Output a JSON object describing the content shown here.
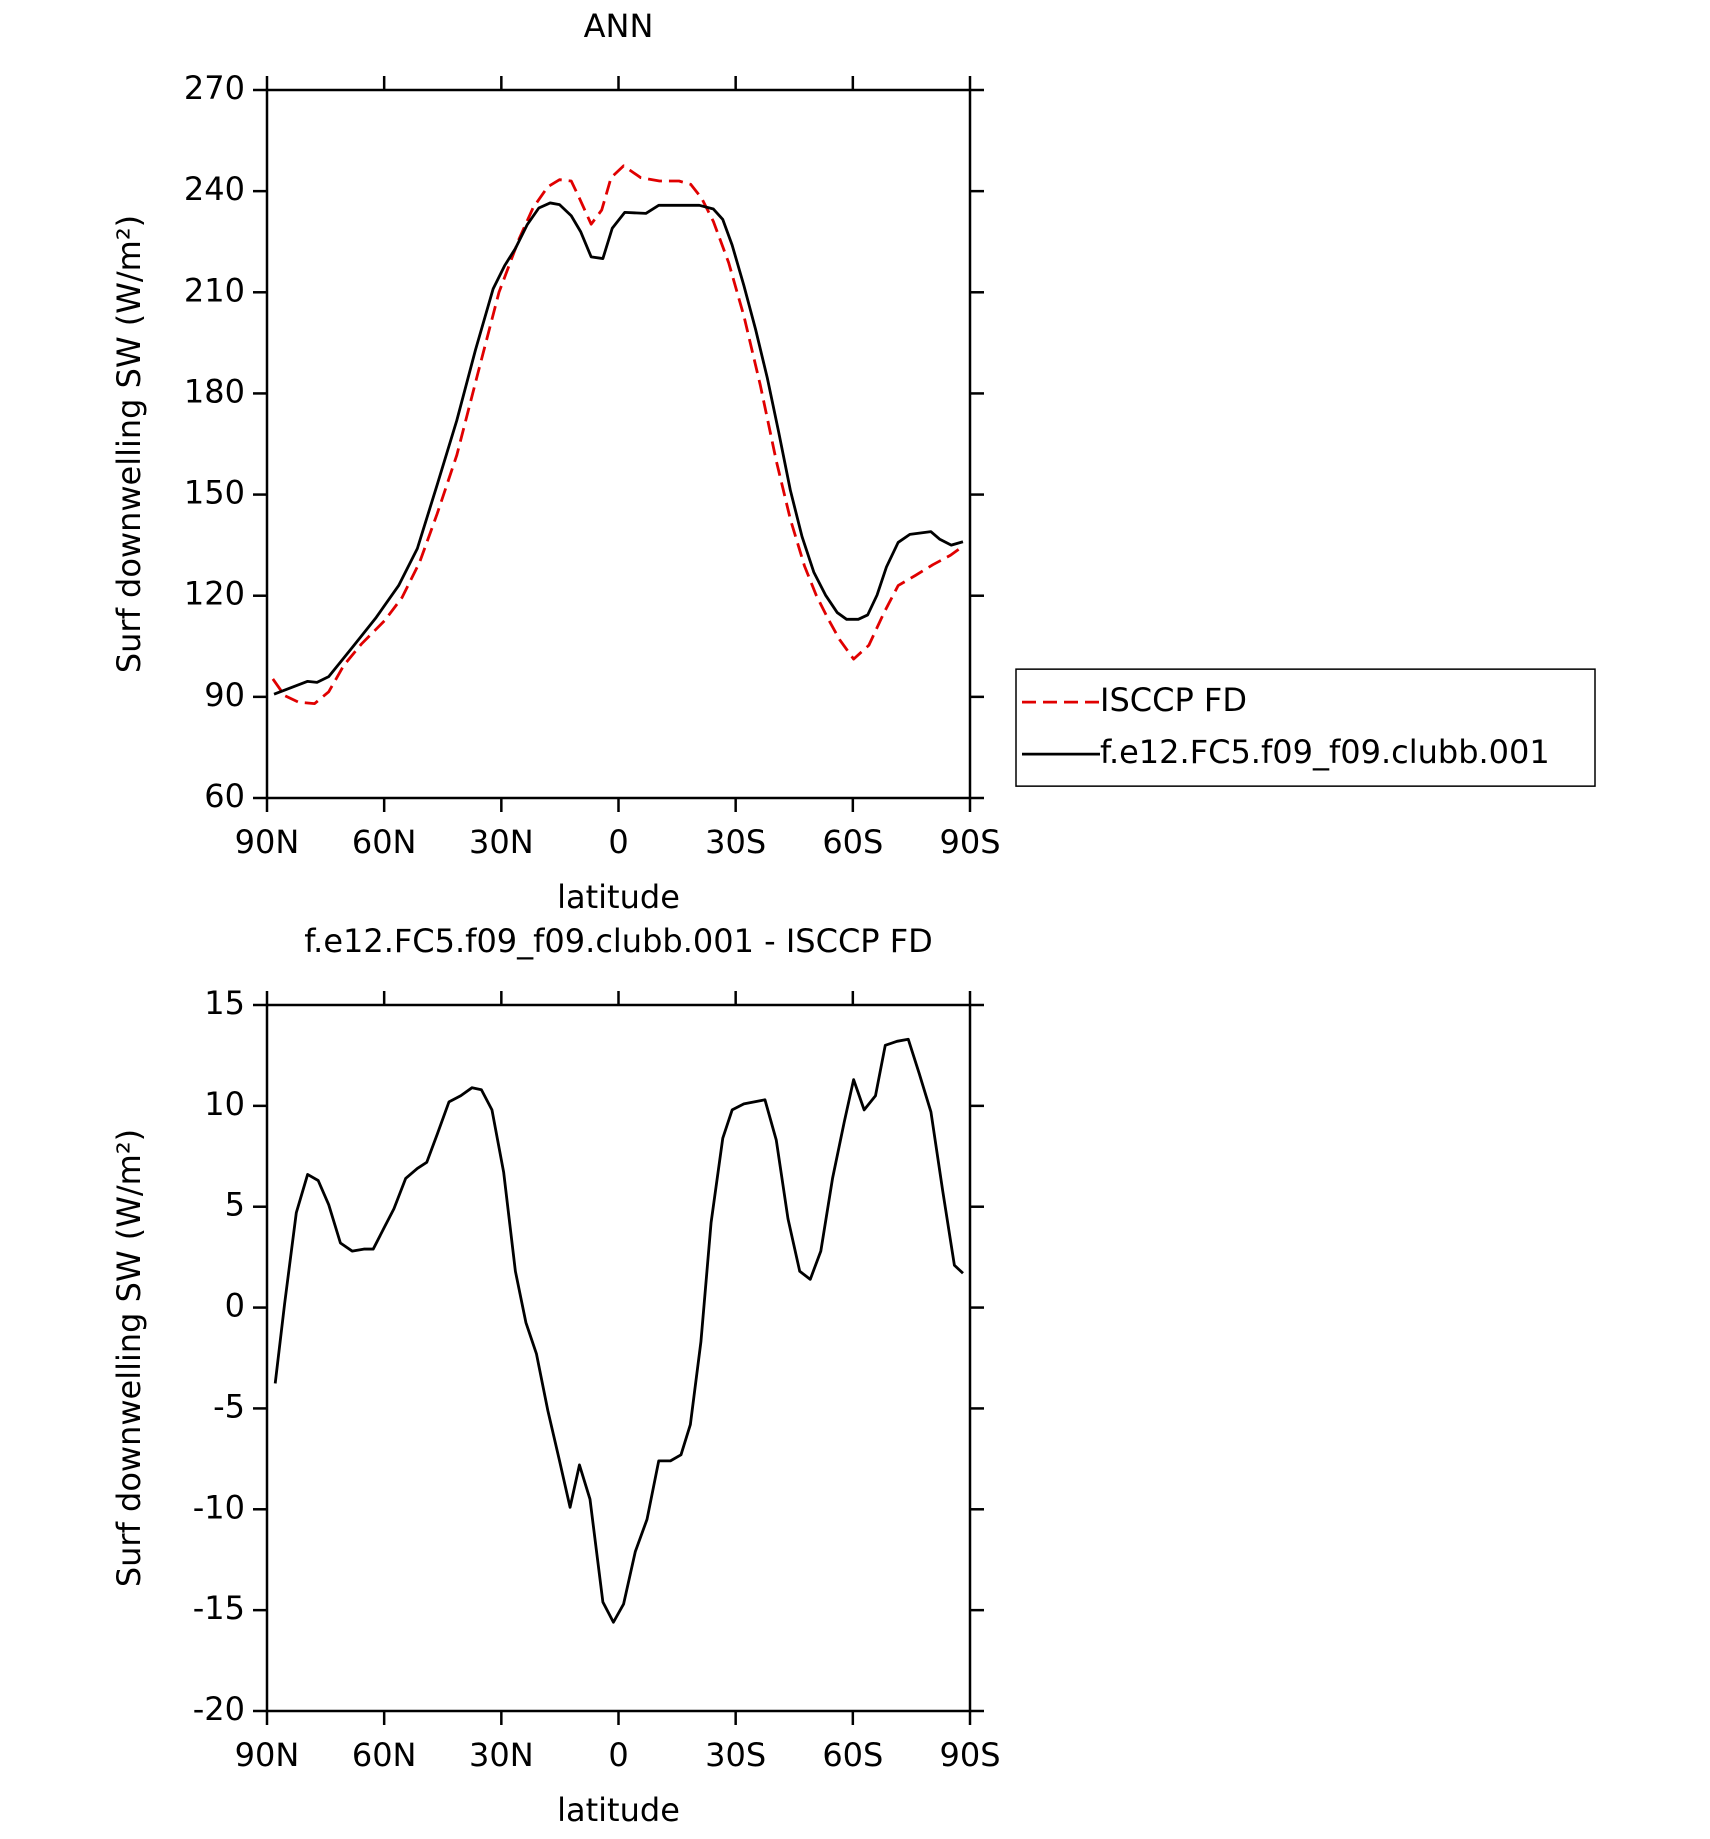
{
  "chart_data": [
    {
      "type": "line",
      "title": "ANN",
      "xlabel": "latitude",
      "ylabel": "Surf downwelling SW (W/m²)",
      "xlim": [
        90,
        -90
      ],
      "xticks": [
        {
          "value": 90,
          "label": "90N"
        },
        {
          "value": 60,
          "label": "60N"
        },
        {
          "value": 30,
          "label": "30N"
        },
        0,
        {
          "value": -30,
          "label": "30S"
        },
        {
          "value": -60,
          "label": "60S"
        },
        {
          "value": -90,
          "label": "90S"
        }
      ],
      "ylim": [
        60,
        270
      ],
      "yticks": [
        60,
        90,
        120,
        150,
        180,
        210,
        240,
        270
      ],
      "legend": "right",
      "series": [
        {
          "name": "ISCCP FD",
          "color": "#e00000",
          "dash": "dashed",
          "x": [
            88.5,
            85.5,
            81.9,
            77.8,
            74.2,
            70.3,
            65.8,
            59.9,
            55.4,
            50.9,
            46.4,
            41.4,
            36,
            30.6,
            25.5,
            21.9,
            18.1,
            15.1,
            12.1,
            10,
            7,
            4.3,
            1.9,
            -1.3,
            -5.7,
            -10.5,
            -15.5,
            -18.5,
            -21.3,
            -24.3,
            -28.2,
            -32.1,
            -36.3,
            -40.4,
            -44,
            -47.6,
            -50.6,
            -53.6,
            -56.6,
            -60.2,
            -64.1,
            -68,
            -71.6,
            -76,
            -80.5,
            -85,
            -88.2
          ],
          "values": [
            95.3,
            90.4,
            88.4,
            88,
            91.5,
            99.4,
            105.7,
            112.6,
            119.5,
            130,
            144.4,
            161.7,
            186,
            210,
            225.7,
            235,
            241.3,
            243.4,
            243,
            237.9,
            230.2,
            234.4,
            244,
            247.5,
            244,
            243,
            243,
            242,
            237.9,
            231,
            218.8,
            203,
            182.5,
            160,
            142.7,
            128.9,
            120.2,
            113.3,
            107,
            101.2,
            105.3,
            115,
            123,
            126,
            129.2,
            132,
            134.7
          ]
        },
        {
          "name": "f.e12.FC5.f09_f09.clubb.001",
          "color": "#000000",
          "dash": "solid",
          "x": [
            88.2,
            79.6,
            77.2,
            74.2,
            68.2,
            62.2,
            56.3,
            51.5,
            46.4,
            41.4,
            36.6,
            32.1,
            29.1,
            26.4,
            23.4,
            20.4,
            17.5,
            15.1,
            12.1,
            9.7,
            7,
            4,
            1.6,
            -1.6,
            -7,
            -10.3,
            -20.7,
            -24.3,
            -26.7,
            -29.1,
            -32.1,
            -35.1,
            -38.1,
            -41,
            -44,
            -47,
            -50,
            -53,
            -56,
            -58.4,
            -61.4,
            -63.8,
            -66.2,
            -68.6,
            -71.6,
            -74.6,
            -80,
            -82.2,
            -85.2,
            -88.2
          ],
          "values": [
            90.8,
            94.6,
            94.3,
            96,
            104.6,
            113.3,
            123,
            134,
            153,
            172,
            193,
            211,
            218,
            223,
            230,
            235,
            236.5,
            236,
            232.7,
            228,
            220.5,
            220,
            229,
            233.7,
            233.4,
            235.8,
            235.8,
            234.7,
            231.6,
            224,
            212,
            199,
            184.6,
            168.6,
            151.3,
            137.5,
            127,
            120.2,
            115,
            113,
            113,
            114.3,
            120.2,
            128.5,
            135.8,
            138.2,
            139,
            136.8,
            135,
            136
          ]
        }
      ]
    },
    {
      "type": "line",
      "title": "f.e12.FC5.f09_f09.clubb.001 - ISCCP FD",
      "xlabel": "latitude",
      "ylabel": "Surf downwelling SW (W/m²)",
      "xlim": [
        90,
        -90
      ],
      "xticks": [
        {
          "value": 90,
          "label": "90N"
        },
        {
          "value": 60,
          "label": "60N"
        },
        {
          "value": 30,
          "label": "30N"
        },
        0,
        {
          "value": -30,
          "label": "30S"
        },
        {
          "value": -60,
          "label": "60S"
        },
        {
          "value": -90,
          "label": "90S"
        }
      ],
      "ylim": [
        -20,
        15
      ],
      "yticks": [
        -20,
        -15,
        -10,
        -5,
        0,
        5,
        10,
        15
      ],
      "series": [
        {
          "color": "#000000",
          "dash": "solid",
          "x": [
            87.9,
            85.5,
            82.5,
            79.6,
            76.9,
            74.2,
            71.2,
            68.2,
            65.2,
            62.8,
            59.9,
            57.5,
            54.5,
            51.5,
            49.1,
            46.4,
            43.4,
            40.4,
            37.5,
            35.1,
            32.4,
            29.4,
            26.4,
            23.7,
            21,
            18.1,
            15.1,
            12.4,
            10,
            7.3,
            4,
            1.3,
            -1.3,
            -4.3,
            -7.3,
            -10.3,
            -13.3,
            -16,
            -18.4,
            -21.1,
            -23.7,
            -26.7,
            -29.1,
            -32.1,
            -37.5,
            -40.4,
            -43.4,
            -46.4,
            -49.1,
            -51.8,
            -54.8,
            -57.8,
            -60.2,
            -62.9,
            -65.8,
            -68.3,
            -71.3,
            -74.2,
            -77,
            -80,
            -83,
            -86,
            -88.2
          ],
          "values": [
            -3.76,
            0.17,
            4.7,
            6.6,
            6.3,
            5.1,
            3.2,
            2.8,
            2.9,
            2.9,
            4,
            4.9,
            6.4,
            6.9,
            7.2,
            8.6,
            10.2,
            10.5,
            10.9,
            10.8,
            9.8,
            6.7,
            1.8,
            -0.75,
            -2.3,
            -5.1,
            -7.6,
            -9.9,
            -7.8,
            -9.5,
            -14.6,
            -15.6,
            -14.7,
            -12.1,
            -10.5,
            -7.6,
            -7.6,
            -7.3,
            -5.8,
            -1.7,
            4.2,
            8.4,
            9.8,
            10.1,
            10.3,
            8.3,
            4.4,
            1.8,
            1.4,
            2.8,
            6.4,
            9.2,
            11.3,
            9.8,
            10.5,
            13,
            13.2,
            13.3,
            11.6,
            9.7,
            5.8,
            2.1,
            1.7
          ]
        }
      ]
    }
  ]
}
